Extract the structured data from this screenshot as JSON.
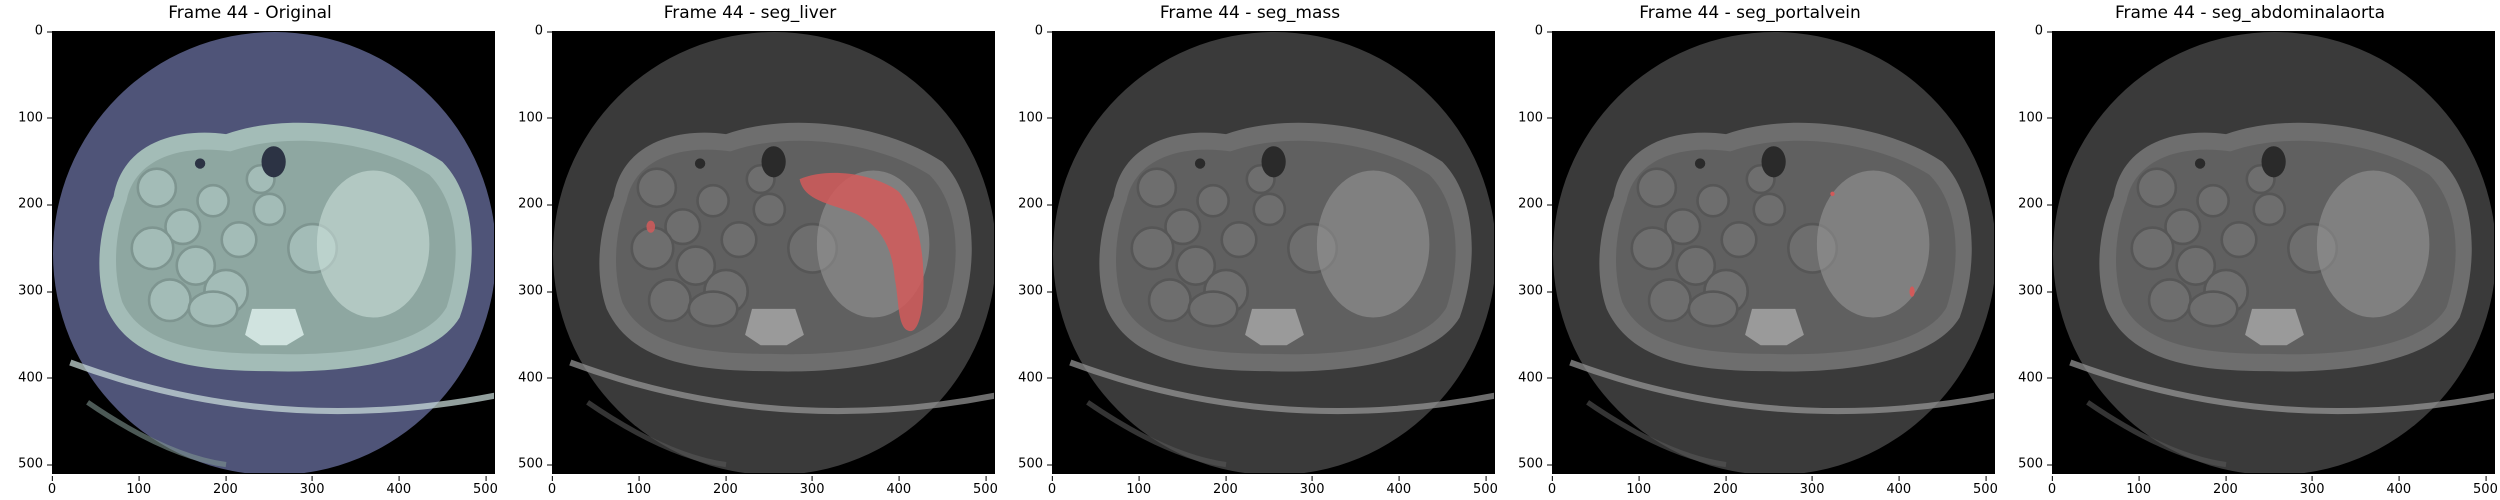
{
  "panels": [
    {
      "title": "Frame 44 - Original",
      "variant": "original",
      "overlay": null
    },
    {
      "title": "Frame 44 - seg_liver",
      "variant": "gray",
      "overlay": "liver"
    },
    {
      "title": "Frame 44 - seg_mass",
      "variant": "gray",
      "overlay": null
    },
    {
      "title": "Frame 44 - seg_portalvein",
      "variant": "gray",
      "overlay": "portalvein"
    },
    {
      "title": "Frame 44 - seg_abdominalaorta",
      "variant": "gray",
      "overlay": null
    }
  ],
  "axes": {
    "y_ticks": [
      "0",
      "100",
      "200",
      "300",
      "400",
      "500"
    ],
    "x_ticks": [
      "0",
      "100",
      "200",
      "300",
      "400",
      "500"
    ],
    "range": [
      0,
      511
    ]
  },
  "colors": {
    "original_tint": "#4f5478",
    "original_tissue": "#a3bcb7",
    "gray_circle": "#3a3a3a",
    "gray_tissue": "#6e6e6e",
    "overlay_red": "#d25a5a"
  }
}
